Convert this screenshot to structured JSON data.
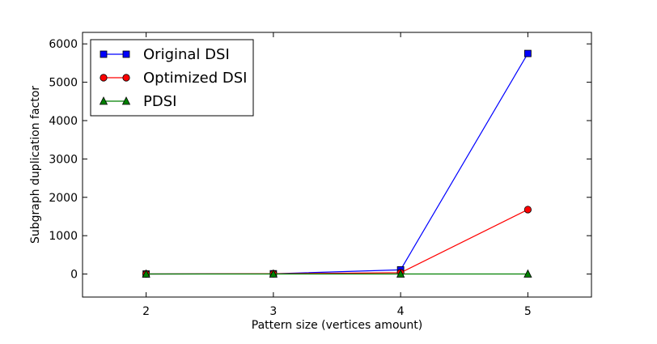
{
  "chart_data": {
    "type": "line",
    "title": "",
    "xlabel": "Pattern size (vertices amount)",
    "ylabel": "Subgraph duplication factor",
    "x": [
      2,
      3,
      4,
      5
    ],
    "xlim": [
      1.5,
      5.5
    ],
    "ylim": [
      -600,
      6300
    ],
    "xticks": [
      2,
      3,
      4,
      5
    ],
    "yticks": [
      0,
      1000,
      2000,
      3000,
      4000,
      5000,
      6000
    ],
    "grid": false,
    "legend_position": "top-left",
    "series": [
      {
        "name": "Original DSI",
        "values": [
          1,
          8,
          110,
          5750
        ],
        "color": "#0000ff",
        "marker": "square"
      },
      {
        "name": "Optimized DSI",
        "values": [
          1,
          6,
          35,
          1680
        ],
        "color": "#ff0000",
        "marker": "circle"
      },
      {
        "name": "PDSI",
        "values": [
          1,
          1,
          1,
          1
        ],
        "color": "#008000",
        "marker": "triangle"
      }
    ]
  }
}
